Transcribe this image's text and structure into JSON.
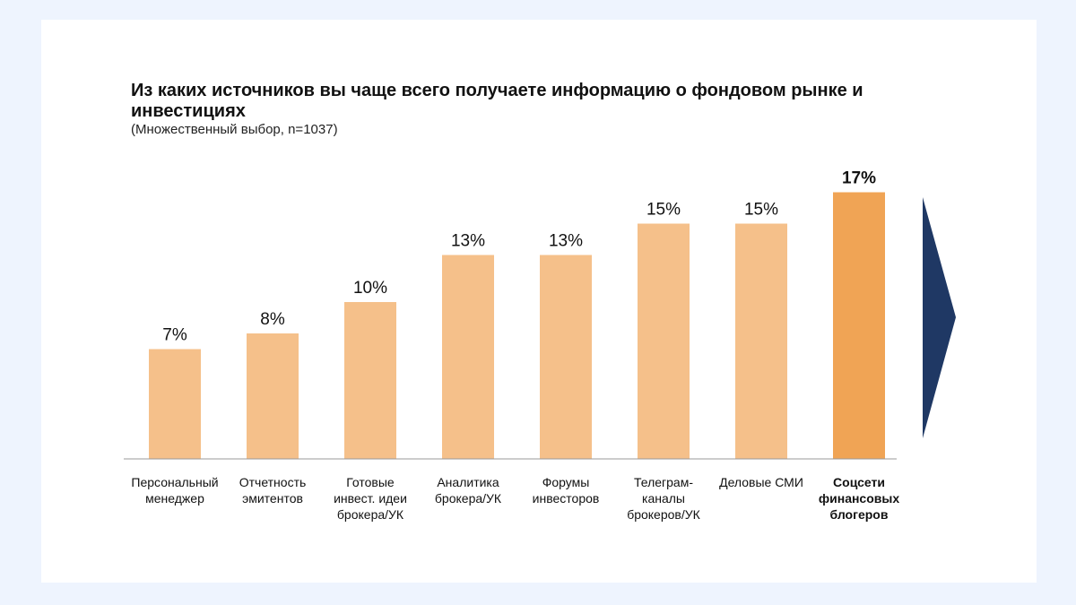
{
  "colors": {
    "frame": "#eef4fe",
    "bar": "#f5c08a",
    "bar_highlight": "#f0a455",
    "arrow": "#1f3864",
    "axis": "#999999"
  },
  "chart_data": {
    "type": "bar",
    "title": "Из каких источников вы чаще всего получаете информацию о фондовом рынке и инвестициях",
    "subtitle": "(Множественный выбор, n=1037)",
    "categories": [
      [
        "Персональный",
        "менеджер"
      ],
      [
        "Отчетность",
        "эмитентов"
      ],
      [
        "Готовые",
        "инвест. идеи",
        "брокера/УК"
      ],
      [
        "Аналитика",
        "брокера/УК"
      ],
      [
        "Форумы",
        "инвесторов"
      ],
      [
        "Телеграм-",
        "каналы",
        "брокеров/УК"
      ],
      [
        "Деловые СМИ"
      ],
      [
        "Соцсети",
        "финансовых",
        "блогеров"
      ]
    ],
    "values": [
      7,
      8,
      10,
      13,
      13,
      15,
      15,
      17
    ],
    "value_labels": [
      "7%",
      "8%",
      "10%",
      "13%",
      "13%",
      "15%",
      "15%",
      "17%"
    ],
    "highlight_index": 7,
    "ylim": [
      0,
      17
    ],
    "grid": false,
    "legend": "none"
  }
}
